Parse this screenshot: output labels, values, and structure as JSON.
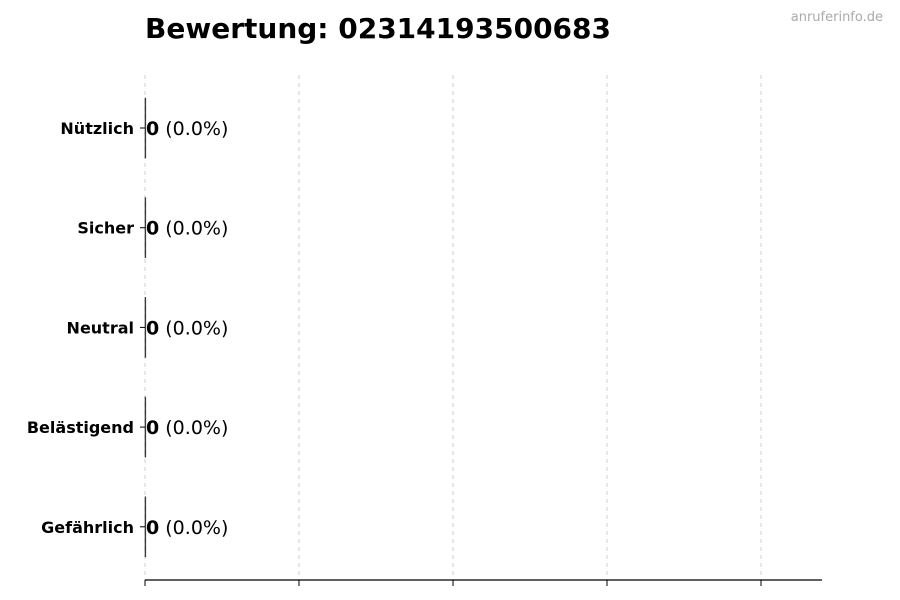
{
  "chart_data": {
    "type": "bar",
    "orientation": "horizontal",
    "title": "Bewertung: 02314193500683",
    "categories": [
      "Nützlich",
      "Sicher",
      "Neutral",
      "Belästigend",
      "Gefährlich"
    ],
    "values": [
      0,
      0,
      0,
      0,
      0
    ],
    "value_labels": [
      "0",
      "0",
      "0",
      "0",
      "0"
    ],
    "percent_labels": [
      "(0.0%)",
      "(0.0%)",
      "(0.0%)",
      "(0.0%)",
      "(0.0%)"
    ],
    "xlabel": "",
    "ylabel": "",
    "x_tick_count": 5,
    "x_tick_labels_shown": false,
    "grid": "x dashed",
    "bar_edge_color": "#333333"
  },
  "watermark": "anruferinfo.de"
}
